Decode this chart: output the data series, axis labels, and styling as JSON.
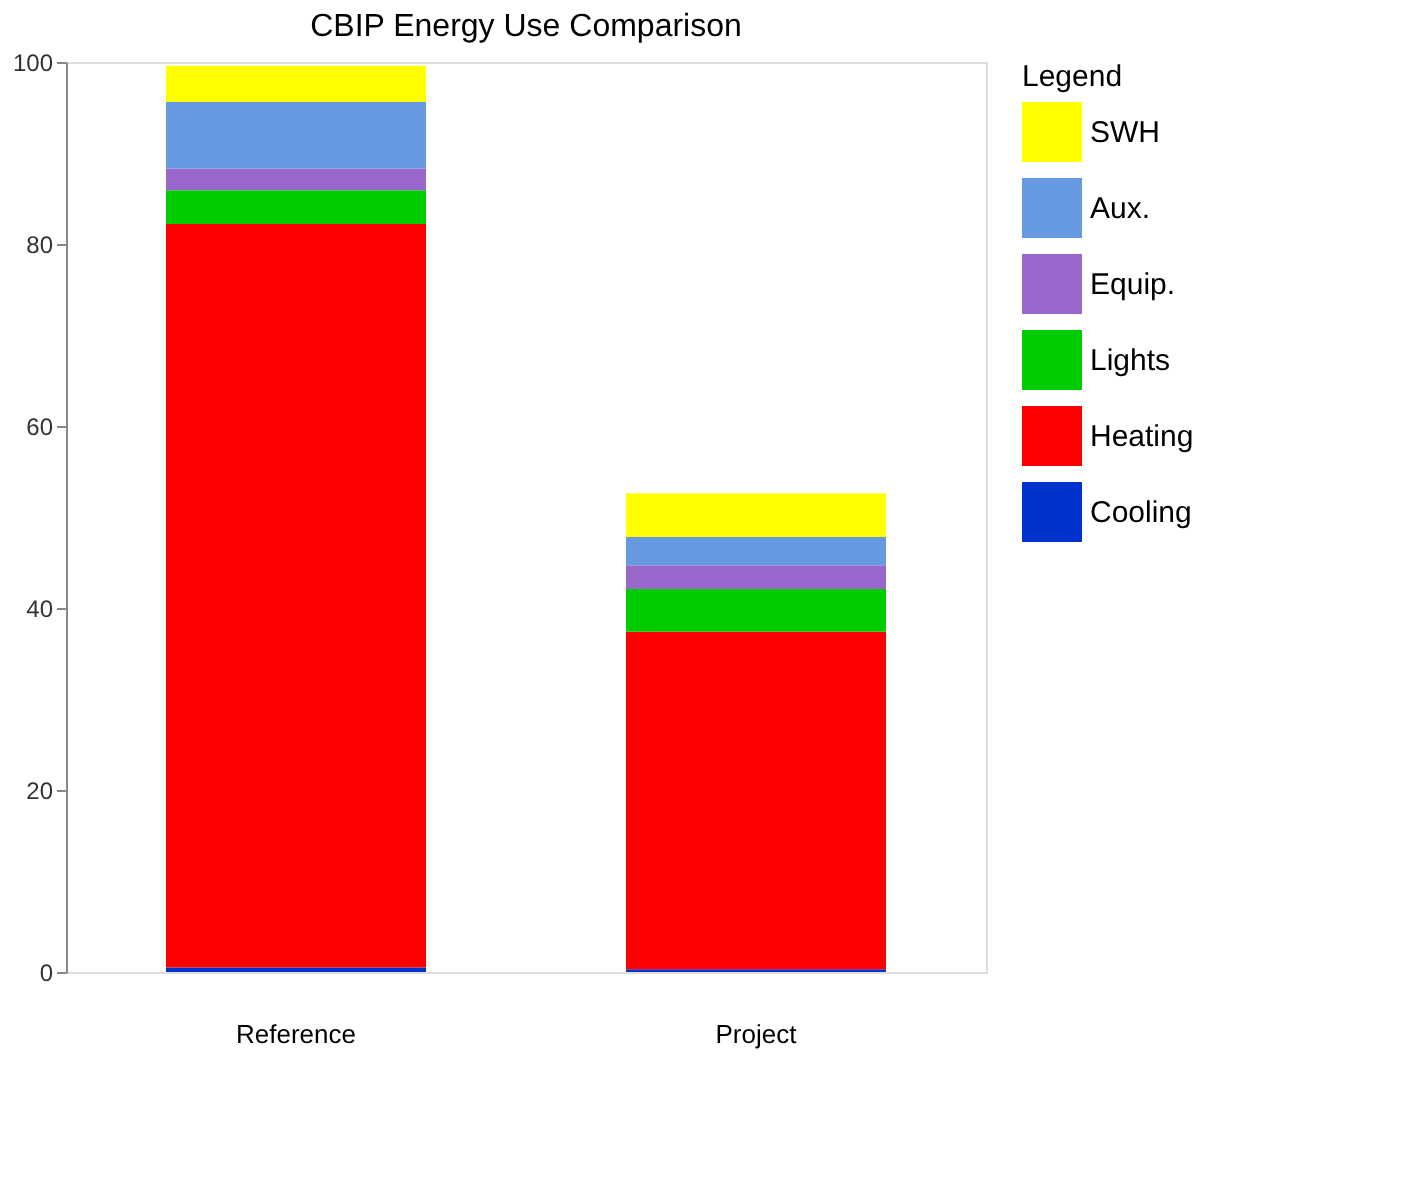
{
  "chart_data": {
    "type": "bar",
    "title": "CBIP Energy Use Comparison",
    "legend_title": "Legend",
    "categories": [
      "Reference",
      "Project"
    ],
    "stacked": true,
    "series": [
      {
        "name": "Cooling",
        "color": "#0033cc",
        "values": [
          0.5,
          0.3
        ]
      },
      {
        "name": "Heating",
        "color": "#ff0000",
        "values": [
          81.7,
          37.1
        ]
      },
      {
        "name": "Lights",
        "color": "#00cc00",
        "values": [
          3.7,
          4.7
        ]
      },
      {
        "name": "Equip.",
        "color": "#9966cc",
        "values": [
          2.4,
          2.6
        ]
      },
      {
        "name": "Aux.",
        "color": "#6699e0",
        "values": [
          7.3,
          3.1
        ]
      },
      {
        "name": "SWH",
        "color": "#ffff00",
        "values": [
          4.0,
          4.8
        ]
      }
    ],
    "ylim": [
      0,
      100
    ],
    "yticks": [
      0,
      20,
      40,
      60,
      80,
      100
    ],
    "grid": false,
    "legend": "top right"
  }
}
